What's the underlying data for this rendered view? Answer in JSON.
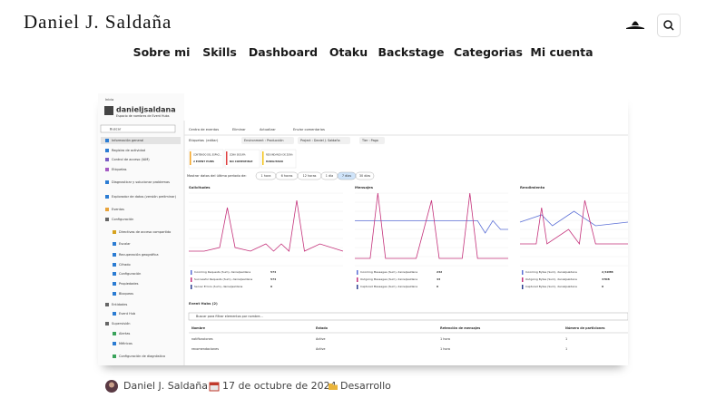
{
  "header": {
    "logo": "Daniel J. Saldaña"
  },
  "nav": [
    "Sobre mi",
    "Skills",
    "Dashboard",
    "Otaku",
    "Backstage",
    "Categorias",
    "Mi cuenta"
  ],
  "screenshot": {
    "breadcrumb": "Inicio",
    "title": "danieljsaldana",
    "subtitle": "Espacio de nombres de Event Hubs",
    "search": "Buscar",
    "sidebar": [
      "Información general",
      "Registro de actividad",
      "Control de acceso (IAM)",
      "Etiquetas",
      "Diagnosticar y solucionar problemas",
      "Explorador de datos (versión preliminar)",
      "Eventos",
      "Configuración",
      "Directivas de acceso compartido",
      "Escalar",
      "Recuperación geográfica",
      "Cifrado",
      "Configuración",
      "Propiedades",
      "Bloqueos",
      "Entidades",
      "Event Hub",
      "Supervisión",
      "Alertas",
      "Métricas",
      "Configuración de diagnóstico"
    ],
    "toolbar": [
      "Centro de eventos",
      "Eliminar",
      "Actualizar",
      "Enviar comentarios"
    ],
    "tags_label": "Etiquetas",
    "tags_edit": "(editar)",
    "tags": [
      "Environment : Producción",
      "Project : Daniel J. Saldaña",
      "Tier : Pago"
    ],
    "cards": [
      {
        "label": "CONTENIDO DEL ESPACI...",
        "value": "2 EVENT HUBS"
      },
      {
        "label": "ZONA SEGURA",
        "value": "NO COMPATIBLE"
      },
      {
        "label": "REDUNDANCIA DE ZONA",
        "value": "HABILITADO"
      }
    ],
    "period_label": "Mostrar datos del último período de:",
    "periods": [
      "1 hora",
      "6 horas",
      "12 horas",
      "1 día",
      "7 días",
      "30 días"
    ],
    "charts": [
      {
        "title": "Solicitudes",
        "legend": [
          {
            "name": "Incoming Requests (Sum), danieljsaldana",
            "value": "574"
          },
          {
            "name": "Successful Requests (Sum), danieljsaldana",
            "value": "574"
          },
          {
            "name": "Server Errors (Sum), danieljsaldana",
            "value": "0"
          }
        ]
      },
      {
        "title": "Mensajes",
        "legend": [
          {
            "name": "Incoming Messages (Sum), danieljsaldana",
            "value": "232"
          },
          {
            "name": "Outgoing Messages (Sum), danieljsaldana",
            "value": "43"
          },
          {
            "name": "Captured Messages (Sum), danieljsaldana",
            "value": "0"
          }
        ]
      },
      {
        "title": "Rendimiento",
        "legend": [
          {
            "name": "Incoming Bytes (Sum), danieljsaldana",
            "value": "2,52MB"
          },
          {
            "name": "Outgoing Bytes (Sum), danieljsaldana",
            "value": "37KB"
          },
          {
            "name": "Captured Bytes (Sum), danieljsaldana",
            "value": "0"
          }
        ]
      }
    ],
    "hubs_title": "Event Hubs (2)",
    "hubs_search": "Buscar para filtrar elementos por nombre...",
    "table": {
      "columns": [
        "Nombre",
        "Estado",
        "Retención de mensajes",
        "Número de particiones"
      ],
      "rows": [
        [
          "notificaciones",
          "Active",
          "1 hora",
          "1"
        ],
        [
          "recomendaciones",
          "Active",
          "1 hora",
          "1"
        ]
      ]
    }
  },
  "meta": {
    "author": "Daniel J. Saldaña",
    "date": "17 de octubre de 2024",
    "category": "Desarrollo"
  }
}
